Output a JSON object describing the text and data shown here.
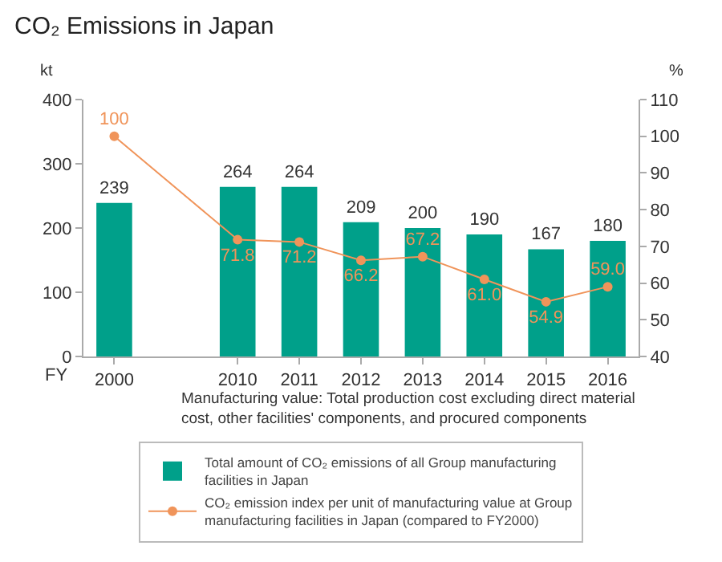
{
  "chart_data": {
    "type": "bar",
    "title": "CO₂ Emissions in Japan",
    "categories": [
      "2000",
      null,
      "2010",
      "2011",
      "2012",
      "2013",
      "2014",
      "2015",
      "2016"
    ],
    "xlabel": "FY",
    "ylabel": "kt",
    "y2label": "%",
    "series": [
      {
        "name": "Total amount of CO₂ emissions of all Group manufacturing facilities in Japan",
        "color": "#00a08a",
        "values": [
          239,
          null,
          264,
          264,
          209,
          200,
          190,
          167,
          180
        ],
        "value_labels": [
          "239",
          null,
          "264",
          "264",
          "209",
          "200",
          "190",
          "167",
          "180"
        ]
      },
      {
        "name": "CO₂ emission index per unit of manufacturing value at Group manufacturing facilities in Japan (compared to FY2000)",
        "type": "line",
        "axis": "y2",
        "color": "#f0945a",
        "marker": "circle",
        "values": [
          100,
          null,
          71.8,
          71.2,
          66.2,
          67.2,
          61.0,
          54.9,
          59.0
        ],
        "value_labels": [
          "100",
          null,
          "71.8",
          "71.2",
          "66.2",
          "67.2",
          "61.0",
          "54.9",
          "59.0"
        ]
      }
    ],
    "ylim": [
      0,
      400
    ],
    "yticks": [
      0,
      100,
      200,
      300,
      400
    ],
    "y2lim": [
      40,
      110
    ],
    "y2ticks": [
      40,
      50,
      60,
      70,
      80,
      90,
      100,
      110
    ],
    "grid": false,
    "legend": "bottom",
    "annotations": [
      "Manufacturing value: Total production cost excluding direct material cost, other facilities' components, and procured components"
    ]
  }
}
